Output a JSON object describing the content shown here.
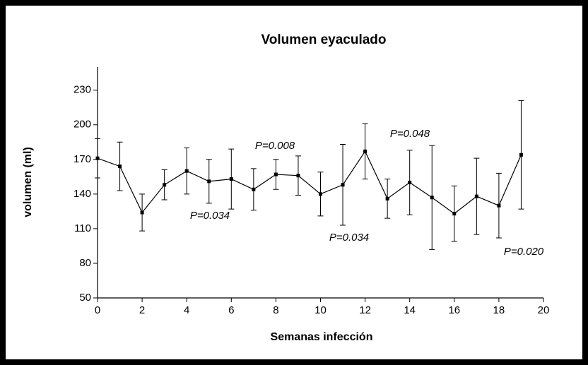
{
  "chart_data": {
    "type": "line",
    "title": "Volumen eyaculado",
    "xlabel": "Semanas infección",
    "ylabel": "volumen (ml)",
    "x": [
      0,
      1,
      2,
      3,
      4,
      5,
      6,
      7,
      8,
      9,
      10,
      11,
      12,
      13,
      14,
      15,
      16,
      17,
      18,
      19
    ],
    "series": [
      {
        "color": "#000000",
        "values": [
          171,
          164,
          124,
          148,
          160,
          151,
          153,
          144,
          157,
          156,
          140,
          148,
          177,
          136,
          150,
          137,
          123,
          138,
          130,
          174
        ],
        "errors": [
          17,
          21,
          16,
          13,
          20,
          19,
          26,
          18,
          13,
          17,
          19,
          35,
          24,
          17,
          28,
          45,
          24,
          33,
          28,
          47
        ]
      }
    ],
    "xlim": [
      0,
      20
    ],
    "xticks": [
      0,
      2,
      4,
      6,
      8,
      10,
      12,
      14,
      16,
      18,
      20
    ],
    "ylim": [
      50,
      250
    ],
    "yticks": [
      50,
      80,
      110,
      140,
      170,
      200,
      230
    ],
    "annotations": [
      "P=0.034",
      "P=0.008",
      "P=0.034",
      "P=0.048",
      "P=0.020"
    ]
  }
}
